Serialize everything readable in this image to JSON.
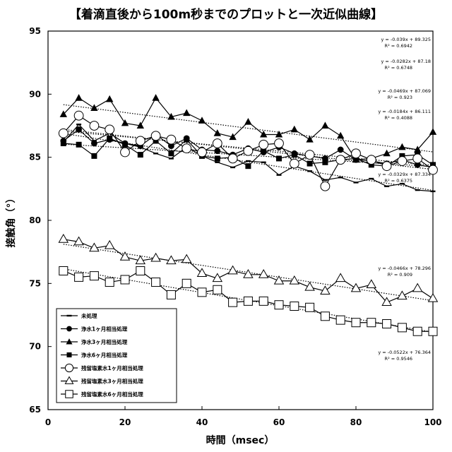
{
  "chart_data": {
    "type": "line",
    "title": "【着滴直後から100m秒までのプロットと一次近似曲線】",
    "xlabel": "時間（msec）",
    "ylabel": "接触角（°）",
    "xlim": [
      0,
      100
    ],
    "ylim": [
      65,
      95
    ],
    "x_ticks": [
      "0",
      "20",
      "40",
      "60",
      "80",
      "100"
    ],
    "y_ticks": [
      "65",
      "70",
      "75",
      "80",
      "85",
      "90",
      "95"
    ],
    "grid": false,
    "legend_position": "bottom-left",
    "x": [
      4,
      8,
      12,
      16,
      20,
      24,
      28,
      32,
      36,
      40,
      44,
      48,
      52,
      56,
      60,
      64,
      68,
      72,
      76,
      80,
      84,
      88,
      92,
      96,
      100
    ],
    "series": [
      {
        "name": "未処理",
        "marker": "dash",
        "values": [
          86.2,
          87.6,
          86.3,
          86.9,
          86.1,
          85.8,
          85.3,
          84.9,
          85.8,
          85.1,
          84.6,
          84.2,
          84.7,
          84.6,
          83.6,
          84.3,
          83.9,
          83.2,
          83.4,
          83.0,
          83.3,
          82.7,
          82.9,
          82.4,
          82.3
        ]
      },
      {
        "name": "浄水1ヶ月相当処理",
        "marker": "filled-circle",
        "values": [
          86.3,
          87.2,
          86.1,
          86.4,
          86.1,
          85.9,
          86.8,
          85.9,
          86.5,
          85.6,
          85.5,
          85.2,
          85.7,
          85.4,
          85.8,
          85.3,
          85.1,
          84.9,
          85.6,
          84.8,
          84.7,
          84.5,
          84.8,
          84.4,
          84.2
        ]
      },
      {
        "name": "浄水3ヶ月相当処理",
        "marker": "filled-triangle",
        "values": [
          88.4,
          89.7,
          88.9,
          89.6,
          87.7,
          87.5,
          89.7,
          88.2,
          88.5,
          87.9,
          86.9,
          86.6,
          87.8,
          86.8,
          86.8,
          87.2,
          86.4,
          87.5,
          86.7,
          84.8,
          84.9,
          85.3,
          85.8,
          85.6,
          87.0
        ]
      },
      {
        "name": "浄水6ヶ月相当処理",
        "marker": "filled-square",
        "values": [
          86.1,
          86.0,
          85.1,
          86.5,
          86.0,
          85.2,
          86.3,
          85.3,
          86.4,
          85.1,
          84.9,
          85.0,
          84.3,
          85.5,
          84.9,
          85.2,
          84.5,
          84.6,
          84.8,
          84.9,
          84.4,
          84.3,
          85.1,
          85.2,
          84.4
        ]
      },
      {
        "name": "残留塩素水1ヶ月相当処理",
        "marker": "open-circle",
        "values": [
          86.9,
          88.3,
          87.5,
          87.2,
          85.4,
          86.3,
          86.7,
          86.4,
          85.7,
          85.4,
          86.1,
          84.9,
          85.5,
          86.0,
          86.1,
          84.5,
          85.2,
          82.7,
          84.8,
          85.3,
          84.8,
          84.3,
          84.7,
          84.9,
          84.0
        ]
      },
      {
        "name": "残留塩素水3ヶ月相当処理",
        "marker": "open-triangle",
        "values": [
          78.5,
          78.3,
          77.8,
          78.0,
          77.1,
          76.8,
          77.0,
          76.8,
          76.9,
          75.8,
          75.4,
          76.0,
          75.7,
          75.7,
          75.2,
          75.2,
          74.7,
          74.4,
          75.4,
          74.6,
          74.9,
          73.5,
          74.0,
          74.6,
          73.8
        ]
      },
      {
        "name": "残留塩素水6ヶ月相当処理",
        "marker": "open-square",
        "values": [
          76.0,
          75.5,
          75.6,
          75.1,
          75.3,
          76.0,
          75.1,
          74.1,
          75.0,
          74.3,
          74.5,
          73.5,
          73.6,
          73.6,
          73.3,
          73.2,
          73.1,
          72.4,
          72.1,
          71.9,
          71.9,
          71.8,
          71.5,
          71.2,
          71.2
        ]
      }
    ],
    "trendlines": [
      {
        "slope": -0.039,
        "intercept": 89.325,
        "equation": "y = -0.039x + 89.325",
        "r2": "R² = 0.6942"
      },
      {
        "slope": -0.0282,
        "intercept": 87.18,
        "equation": "y = -0.0282x + 87.18",
        "r2": "R² = 0.6748"
      },
      {
        "slope": -0.0469,
        "intercept": 87.069,
        "equation": "y = -0.0469x + 87.069",
        "r2": "R² = 0.923"
      },
      {
        "slope": -0.0184,
        "intercept": 86.111,
        "equation": "y = -0.0184x + 86.111",
        "r2": "R² = 0.4088"
      },
      {
        "slope": -0.0329,
        "intercept": 87.334,
        "equation": "y = -0.0329x + 87.334",
        "r2": "R² = 0.6375"
      },
      {
        "slope": -0.0466,
        "intercept": 78.296,
        "equation": "y = -0.0466x + 78.296",
        "r2": "R² = 0.909"
      },
      {
        "slope": -0.0522,
        "intercept": 76.364,
        "equation": "y = -0.0522x + 76.364",
        "r2": "R² = 0.9546"
      }
    ]
  }
}
